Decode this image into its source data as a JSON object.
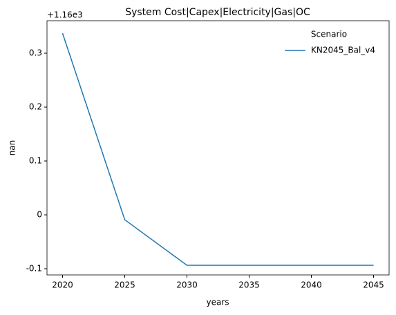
{
  "chart_data": {
    "type": "line",
    "title": "System Cost|Capex|Electricity|Gas|OC",
    "xlabel": "years",
    "ylabel": "nan",
    "y_offset_text": "+1.16e3",
    "x": [
      2020,
      2025,
      2030,
      2035,
      2040,
      2045
    ],
    "series": [
      {
        "name": "KN2045_Bal_v4",
        "color": "#1f77b4",
        "values": [
          0.337,
          -0.009,
          -0.0936,
          -0.0936,
          -0.0936,
          -0.0936
        ]
      }
    ],
    "legend_title": "Scenario",
    "legend": "upper right",
    "xlim": [
      2018.75,
      2046.25
    ],
    "xticks": [
      2020,
      2025,
      2030,
      2035,
      2040,
      2045
    ],
    "ylim": [
      -0.1115,
      0.3603
    ],
    "yticks": [
      -0.1,
      0.0,
      0.1,
      0.2,
      0.3
    ],
    "grid": false
  }
}
